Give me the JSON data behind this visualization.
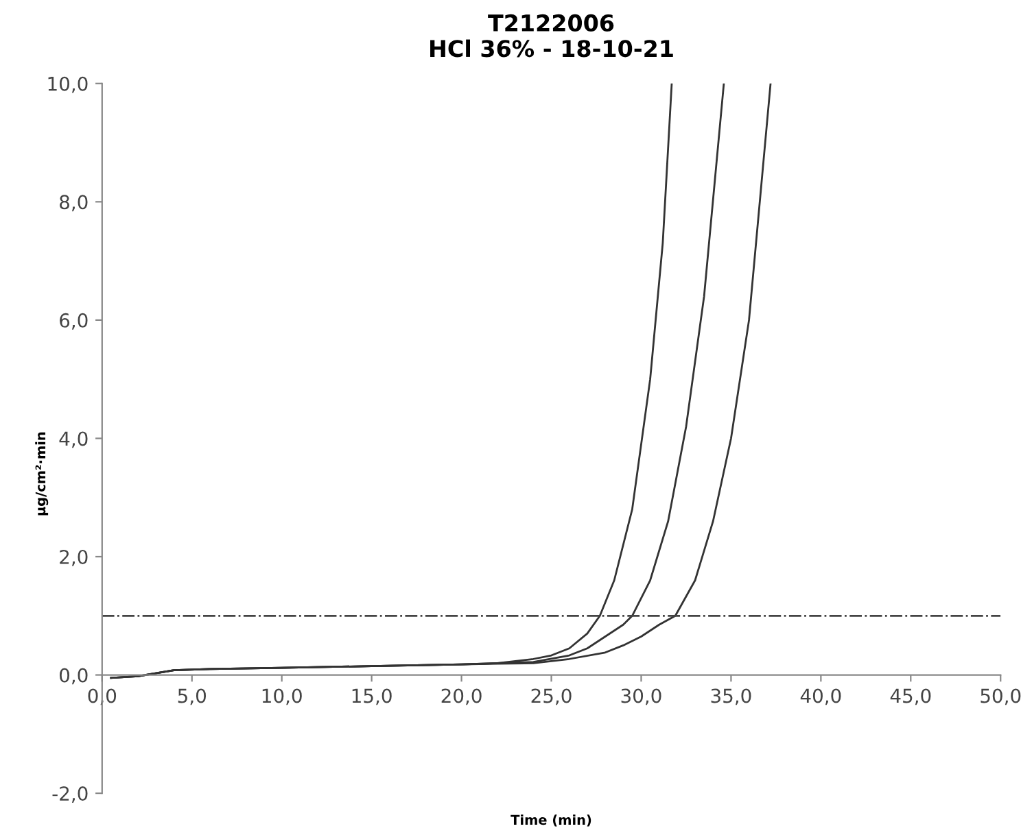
{
  "chart_data": {
    "type": "line",
    "title": "T2122006\nHCl 36% - 18-10-21",
    "xlabel": "Time (min)",
    "ylabel": "µg/cm²·min",
    "xlim": [
      0,
      50
    ],
    "ylim": [
      -2,
      10
    ],
    "xticks": [
      {
        "value": 0,
        "label": "0,0"
      },
      {
        "value": 5,
        "label": "5,0"
      },
      {
        "value": 10,
        "label": "10,0"
      },
      {
        "value": 15,
        "label": "15,0"
      },
      {
        "value": 20,
        "label": "20,0"
      },
      {
        "value": 25,
        "label": "25,0"
      },
      {
        "value": 30,
        "label": "30,0"
      },
      {
        "value": 35,
        "label": "35,0"
      },
      {
        "value": 40,
        "label": "40,0"
      },
      {
        "value": 45,
        "label": "45,0"
      },
      {
        "value": 50,
        "label": "50,0"
      }
    ],
    "yticks": [
      {
        "value": -2,
        "label": "-2,0"
      },
      {
        "value": 0,
        "label": "0,0"
      },
      {
        "value": 2,
        "label": "2,0"
      },
      {
        "value": 4,
        "label": "4,0"
      },
      {
        "value": 6,
        "label": "6,0"
      },
      {
        "value": 8,
        "label": "8,0"
      },
      {
        "value": 10,
        "label": "10,0"
      }
    ],
    "grid": false,
    "legend": false,
    "marker": "none",
    "line_style": "solid",
    "series": [
      {
        "color": "#333333",
        "x": [
          0.5,
          2,
          4,
          6,
          10,
          15,
          20,
          22,
          24,
          25,
          26,
          27,
          27.7,
          28.5,
          29.5,
          30.5,
          31.2,
          31.7
        ],
        "values": [
          -0.05,
          -0.02,
          0.08,
          0.1,
          0.12,
          0.15,
          0.18,
          0.2,
          0.27,
          0.33,
          0.45,
          0.7,
          1.0,
          1.6,
          2.8,
          5.0,
          7.3,
          10.0
        ]
      },
      {
        "color": "#333333",
        "x": [
          0.5,
          2,
          4,
          6,
          10,
          15,
          20,
          22,
          24,
          26,
          27,
          28,
          29,
          29.5,
          30.5,
          31.5,
          32.5,
          33.5,
          34.6
        ],
        "values": [
          -0.05,
          -0.02,
          0.08,
          0.1,
          0.12,
          0.15,
          0.18,
          0.2,
          0.22,
          0.33,
          0.45,
          0.65,
          0.85,
          1.0,
          1.6,
          2.6,
          4.2,
          6.4,
          10.0
        ]
      },
      {
        "color": "#333333",
        "x": [
          0.5,
          2,
          4,
          6,
          10,
          15,
          20,
          22,
          24,
          26,
          28,
          29,
          30,
          31,
          31.9,
          33,
          34,
          35,
          36,
          37.2
        ],
        "values": [
          -0.05,
          -0.02,
          0.08,
          0.1,
          0.12,
          0.15,
          0.18,
          0.19,
          0.2,
          0.27,
          0.38,
          0.5,
          0.65,
          0.85,
          1.0,
          1.6,
          2.6,
          4.0,
          6.0,
          10.0
        ]
      }
    ],
    "ref_lines": [
      {
        "axis": "y",
        "value": 1.0,
        "color": "#444444",
        "line_style": "dashdot"
      }
    ]
  }
}
